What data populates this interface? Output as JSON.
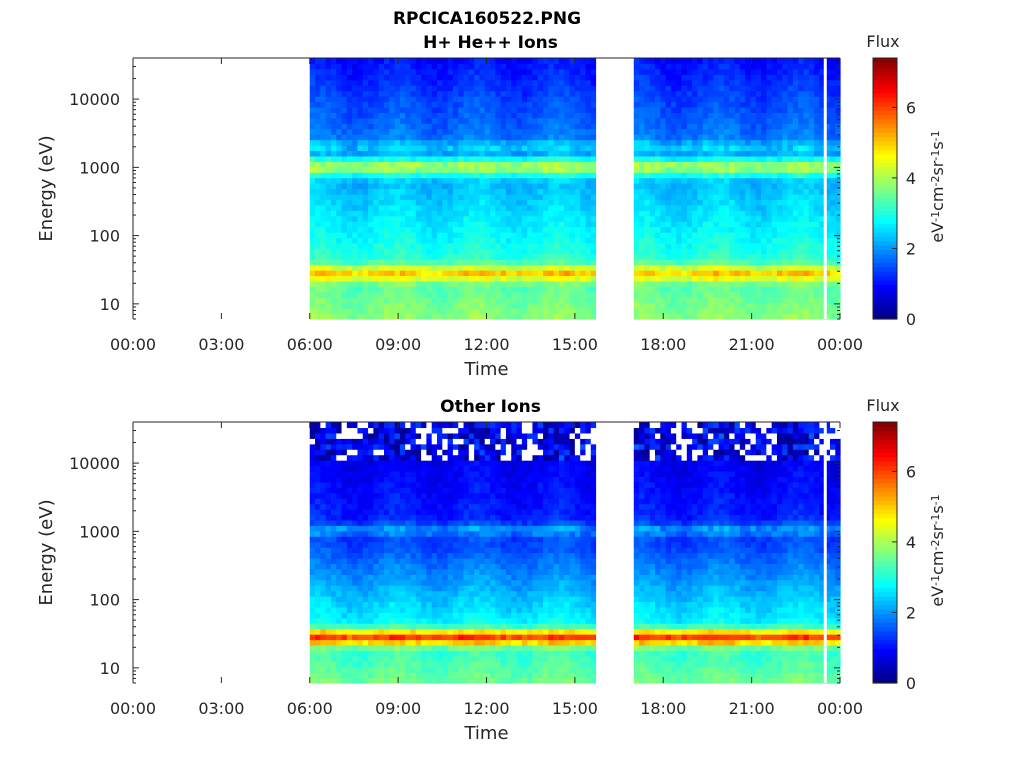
{
  "figure": {
    "title": "RPCICA160522.PNG"
  },
  "chart_data": [
    {
      "type": "heatmap",
      "title": "H+ He++ Ions",
      "xlabel": "Time",
      "ylabel": "Energy (eV)",
      "x_tick_labels": [
        "00:00",
        "03:00",
        "06:00",
        "09:00",
        "12:00",
        "15:00",
        "18:00",
        "21:00",
        "00:00"
      ],
      "x_ticks_hours": [
        0,
        3,
        6,
        9,
        12,
        15,
        18,
        21,
        24
      ],
      "xlim_hours": [
        0,
        24
      ],
      "y_scale": "log",
      "y_tick_labels": [
        "10",
        "100",
        "1000",
        "10000"
      ],
      "y_ticks": [
        10,
        100,
        1000,
        10000
      ],
      "ylim": [
        6,
        40000
      ],
      "data_intervals_hours": [
        [
          6.0,
          15.7
        ],
        [
          17.0,
          24.0
        ]
      ],
      "gap_line_hour": 23.5,
      "colorbar": {
        "title": "Flux",
        "label": "eV-1cm-2sr-1s-1",
        "label_parts": [
          "eV",
          "-1",
          "cm",
          "-2",
          "sr",
          "-1",
          "s",
          "-1"
        ],
        "tick_labels": [
          "0",
          "2",
          "4",
          "6"
        ],
        "ticks": [
          0,
          2,
          4,
          6
        ],
        "range": [
          0,
          7.4
        ],
        "colormap": "jet"
      },
      "features": [
        {
          "name": "low-energy band",
          "energy_range_eV": [
            20,
            40
          ],
          "flux": 5.0
        },
        {
          "name": "keV band",
          "energy_range_eV": [
            700,
            1500
          ],
          "flux": 4.0
        },
        {
          "name": "upper band",
          "energy_range_eV": [
            1700,
            2500
          ],
          "flux": 2.5
        }
      ],
      "background_flux": {
        "at_6eV": 3.8,
        "at_100eV": 2.8,
        "at_1000eV": 2.1,
        "at_40000eV": 1.0
      }
    },
    {
      "type": "heatmap",
      "title": "Other Ions",
      "xlabel": "Time",
      "ylabel": "Energy (eV)",
      "x_tick_labels": [
        "00:00",
        "03:00",
        "06:00",
        "09:00",
        "12:00",
        "15:00",
        "18:00",
        "21:00",
        "00:00"
      ],
      "x_ticks_hours": [
        0,
        3,
        6,
        9,
        12,
        15,
        18,
        21,
        24
      ],
      "xlim_hours": [
        0,
        24
      ],
      "y_scale": "log",
      "y_tick_labels": [
        "10",
        "100",
        "1000",
        "10000"
      ],
      "y_ticks": [
        10,
        100,
        1000,
        10000
      ],
      "ylim": [
        6,
        40000
      ],
      "data_intervals_hours": [
        [
          6.0,
          15.7
        ],
        [
          17.0,
          24.0
        ]
      ],
      "gap_line_hour": 23.5,
      "colorbar": {
        "title": "Flux",
        "label": "eV-1cm-2sr-1s-1",
        "label_parts": [
          "eV",
          "-1",
          "cm",
          "-2",
          "sr",
          "-1",
          "s",
          "-1"
        ],
        "tick_labels": [
          "0",
          "2",
          "4",
          "6"
        ],
        "ticks": [
          0,
          2,
          4,
          6
        ],
        "range": [
          0,
          7.4
        ],
        "colormap": "jet"
      },
      "features": [
        {
          "name": "low-energy band",
          "energy_range_eV": [
            20,
            40
          ],
          "flux": 6.0
        },
        {
          "name": "keV band",
          "energy_range_eV": [
            800,
            1400
          ],
          "flux": 2.0
        },
        {
          "name": "sparse high-energy region",
          "energy_range_eV": [
            11000,
            40000
          ],
          "flux": 0.6
        }
      ],
      "background_flux": {
        "at_6eV": 3.6,
        "at_100eV": 2.4,
        "at_1000eV": 1.2,
        "at_40000eV": 0.6
      }
    }
  ]
}
